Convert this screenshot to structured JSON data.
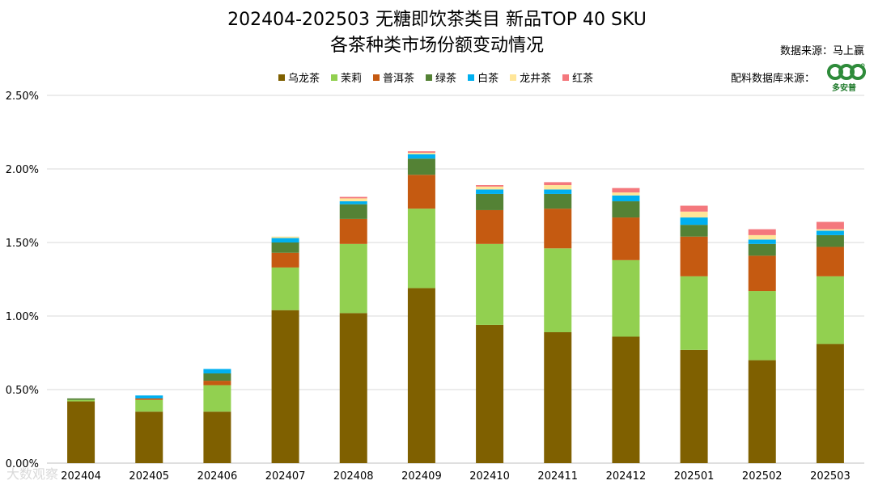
{
  "header": {
    "title_line1": "202404-202503 无糖即饮茶类目 新品TOP 40 SKU",
    "title_line2": "各茶种类市场份额变动情况",
    "data_source": "数据来源：马上赢",
    "ingredient_source": "配料数据库来源：",
    "logo_text": "多安普",
    "watermark": "大数观察"
  },
  "chart_data": {
    "type": "bar",
    "stacked": true,
    "categories": [
      "202404",
      "202405",
      "202406",
      "202407",
      "202408",
      "202409",
      "202410",
      "202411",
      "202412",
      "202501",
      "202502",
      "202503"
    ],
    "ylim": [
      0,
      2.5
    ],
    "yticks": [
      0,
      0.5,
      1.0,
      1.5,
      2.0,
      2.5
    ],
    "ytick_labels": [
      "0.00%",
      "0.50%",
      "1.00%",
      "1.50%",
      "2.00%",
      "2.50%"
    ],
    "grid": true,
    "legend_position": "top",
    "series": [
      {
        "name": "乌龙茶",
        "color": "#7f6000",
        "values": [
          0.42,
          0.35,
          0.35,
          1.04,
          1.02,
          1.19,
          0.94,
          0.89,
          0.86,
          0.77,
          0.7,
          0.81
        ]
      },
      {
        "name": "茉莉",
        "color": "#92d050",
        "values": [
          0.01,
          0.08,
          0.18,
          0.29,
          0.47,
          0.54,
          0.55,
          0.57,
          0.52,
          0.5,
          0.47,
          0.46
        ]
      },
      {
        "name": "普洱茶",
        "color": "#c55a11",
        "values": [
          0.0,
          0.01,
          0.03,
          0.1,
          0.17,
          0.23,
          0.23,
          0.27,
          0.29,
          0.27,
          0.24,
          0.2
        ]
      },
      {
        "name": "绿茶",
        "color": "#548235",
        "values": [
          0.01,
          0.0,
          0.05,
          0.07,
          0.1,
          0.11,
          0.11,
          0.1,
          0.11,
          0.08,
          0.08,
          0.08
        ]
      },
      {
        "name": "白茶",
        "color": "#00b0f0",
        "values": [
          0.0,
          0.02,
          0.03,
          0.03,
          0.02,
          0.03,
          0.03,
          0.03,
          0.04,
          0.05,
          0.03,
          0.03
        ]
      },
      {
        "name": "龙井茶",
        "color": "#ffe699",
        "values": [
          0.0,
          0.0,
          0.0,
          0.01,
          0.02,
          0.01,
          0.02,
          0.03,
          0.02,
          0.04,
          0.03,
          0.01
        ]
      },
      {
        "name": "红茶",
        "color": "#f4787d",
        "values": [
          0.0,
          0.0,
          0.0,
          0.0,
          0.01,
          0.01,
          0.01,
          0.02,
          0.03,
          0.04,
          0.04,
          0.05
        ]
      }
    ]
  }
}
